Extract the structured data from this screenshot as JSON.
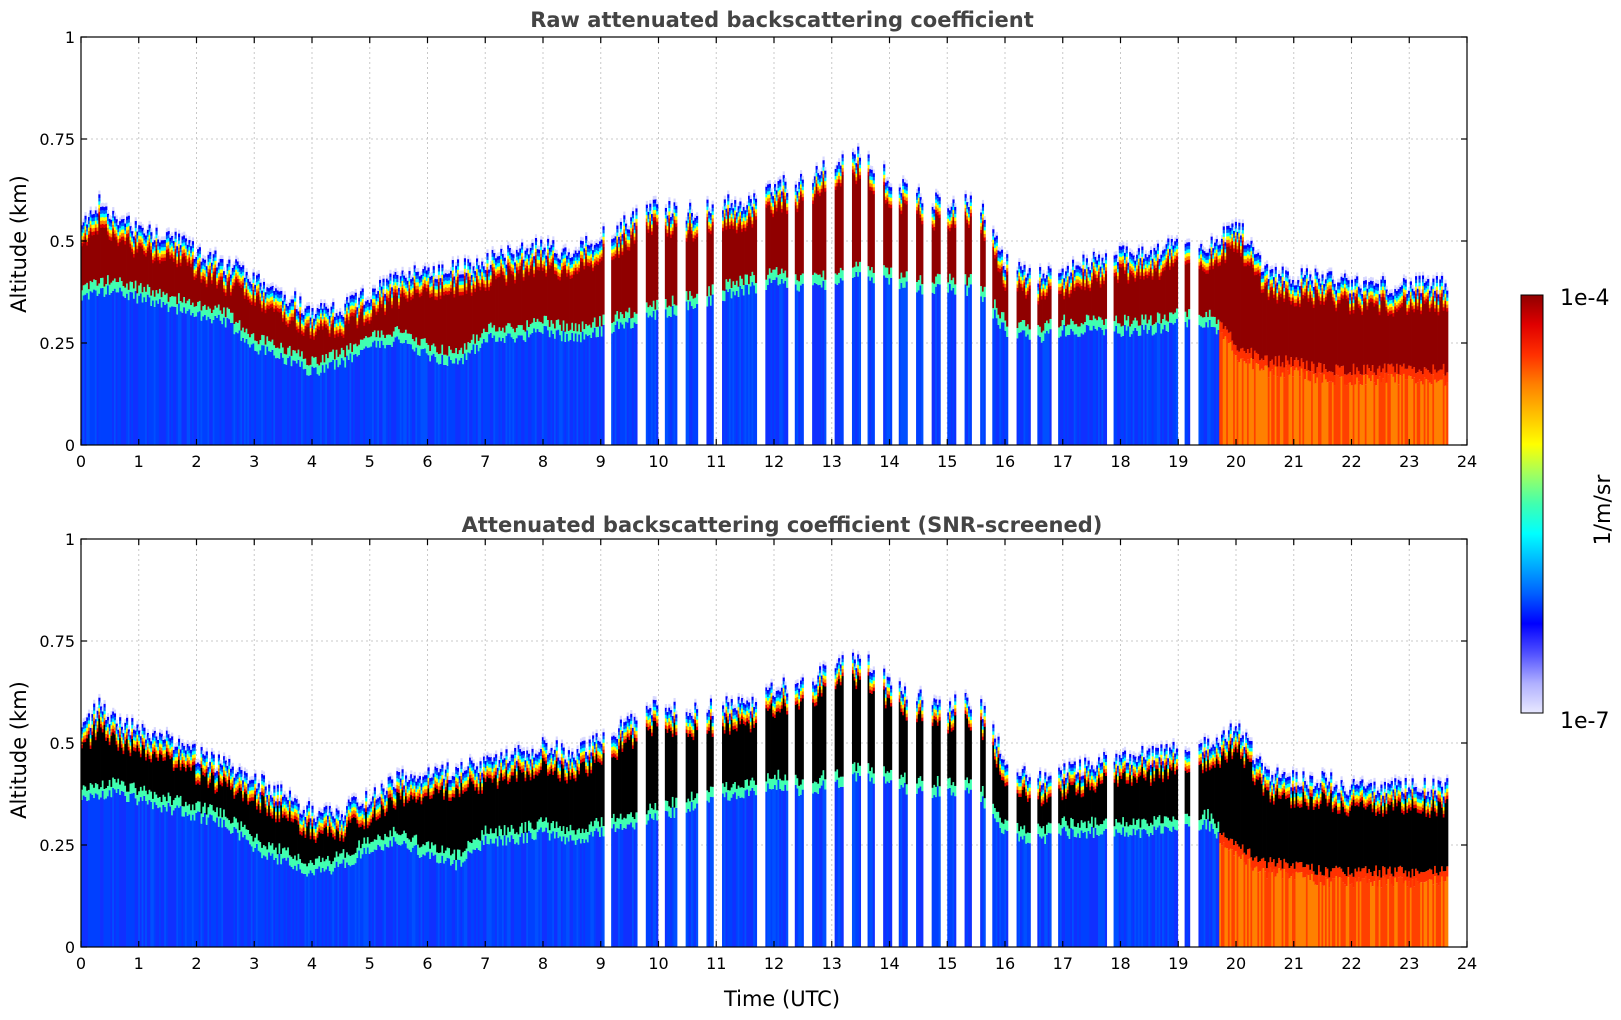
{
  "chart_data": [
    {
      "type": "heatmap",
      "title": "Raw attenuated backscattering coefficient",
      "xlabel": "",
      "ylabel": "Altitude (km)",
      "xlim": [
        0,
        24
      ],
      "ylim": [
        0,
        1
      ],
      "xticks": [
        "0",
        "1",
        "2",
        "3",
        "4",
        "5",
        "6",
        "7",
        "8",
        "9",
        "10",
        "11",
        "12",
        "13",
        "14",
        "15",
        "16",
        "17",
        "18",
        "19",
        "20",
        "21",
        "22",
        "23",
        "24"
      ],
      "yticks": [
        "0",
        "0.25",
        "0.5",
        "0.75",
        "1"
      ],
      "grid": true,
      "screened": false,
      "layer_top_km": [
        [
          0,
          0.54
        ],
        [
          0.3,
          0.6
        ],
        [
          0.6,
          0.56
        ],
        [
          1.0,
          0.54
        ],
        [
          1.5,
          0.52
        ],
        [
          2.0,
          0.48
        ],
        [
          2.5,
          0.45
        ],
        [
          3.0,
          0.42
        ],
        [
          3.5,
          0.38
        ],
        [
          4.0,
          0.34
        ],
        [
          4.5,
          0.34
        ],
        [
          5.0,
          0.38
        ],
        [
          5.5,
          0.42
        ],
        [
          6.0,
          0.44
        ],
        [
          6.5,
          0.44
        ],
        [
          7.0,
          0.46
        ],
        [
          7.5,
          0.48
        ],
        [
          8.0,
          0.5
        ],
        [
          8.5,
          0.48
        ],
        [
          9.0,
          0.52
        ],
        [
          9.5,
          0.56
        ],
        [
          10.0,
          0.6
        ],
        [
          10.5,
          0.58
        ],
        [
          11.0,
          0.6
        ],
        [
          11.5,
          0.6
        ],
        [
          12.0,
          0.64
        ],
        [
          12.5,
          0.66
        ],
        [
          13.0,
          0.7
        ],
        [
          13.5,
          0.72
        ],
        [
          14.0,
          0.66
        ],
        [
          14.5,
          0.62
        ],
        [
          15.0,
          0.6
        ],
        [
          15.5,
          0.62
        ],
        [
          16.0,
          0.46
        ],
        [
          16.5,
          0.42
        ],
        [
          17.0,
          0.44
        ],
        [
          17.5,
          0.46
        ],
        [
          18.0,
          0.48
        ],
        [
          18.5,
          0.48
        ],
        [
          19.0,
          0.5
        ],
        [
          19.5,
          0.5
        ],
        [
          20.0,
          0.55
        ],
        [
          20.5,
          0.44
        ],
        [
          21.0,
          0.42
        ],
        [
          21.5,
          0.42
        ],
        [
          22.0,
          0.4
        ],
        [
          22.5,
          0.4
        ],
        [
          23.0,
          0.4
        ],
        [
          23.65,
          0.4
        ]
      ],
      "layer_base_km": [
        [
          0,
          0.36
        ],
        [
          0.5,
          0.38
        ],
        [
          1.0,
          0.36
        ],
        [
          1.5,
          0.34
        ],
        [
          2.0,
          0.32
        ],
        [
          2.5,
          0.3
        ],
        [
          3.0,
          0.24
        ],
        [
          3.5,
          0.21
        ],
        [
          4.0,
          0.18
        ],
        [
          4.5,
          0.2
        ],
        [
          5.0,
          0.24
        ],
        [
          5.5,
          0.26
        ],
        [
          6.0,
          0.22
        ],
        [
          6.5,
          0.2
        ],
        [
          7.0,
          0.26
        ],
        [
          7.5,
          0.26
        ],
        [
          8.0,
          0.28
        ],
        [
          8.5,
          0.26
        ],
        [
          9.0,
          0.28
        ],
        [
          9.5,
          0.3
        ],
        [
          10.0,
          0.32
        ],
        [
          10.5,
          0.34
        ],
        [
          11.0,
          0.36
        ],
        [
          11.5,
          0.38
        ],
        [
          12.0,
          0.4
        ],
        [
          12.5,
          0.38
        ],
        [
          13.0,
          0.4
        ],
        [
          13.5,
          0.42
        ],
        [
          14.0,
          0.4
        ],
        [
          14.5,
          0.38
        ],
        [
          15.0,
          0.38
        ],
        [
          15.5,
          0.38
        ],
        [
          16.0,
          0.28
        ],
        [
          16.5,
          0.26
        ],
        [
          17.0,
          0.28
        ],
        [
          17.5,
          0.28
        ],
        [
          18.0,
          0.28
        ],
        [
          18.5,
          0.28
        ],
        [
          19.0,
          0.3
        ],
        [
          19.5,
          0.3
        ],
        [
          20.0,
          0.22
        ],
        [
          20.5,
          0.18
        ],
        [
          21.0,
          0.18
        ],
        [
          21.5,
          0.16
        ],
        [
          22.0,
          0.16
        ],
        [
          22.5,
          0.16
        ],
        [
          23.0,
          0.16
        ],
        [
          23.65,
          0.16
        ]
      ],
      "data_gaps_utc": [
        9.12,
        9.7,
        10.05,
        10.4,
        10.75,
        11.02,
        11.78,
        12.3,
        12.58,
        12.98,
        13.28,
        13.56,
        13.82,
        14.1,
        14.38,
        14.66,
        14.94,
        15.22,
        15.5,
        15.72,
        16.12,
        16.5,
        16.86,
        17.82,
        19.05,
        19.28
      ],
      "end_utc": 23.65
    },
    {
      "type": "heatmap",
      "title": "Attenuated backscattering coefficient (SNR-screened)",
      "xlabel": "Time (UTC)",
      "ylabel": "Altitude (km)",
      "xlim": [
        0,
        24
      ],
      "ylim": [
        0,
        1
      ],
      "xticks": [
        "0",
        "1",
        "2",
        "3",
        "4",
        "5",
        "6",
        "7",
        "8",
        "9",
        "10",
        "11",
        "12",
        "13",
        "14",
        "15",
        "16",
        "17",
        "18",
        "19",
        "20",
        "21",
        "22",
        "23",
        "24"
      ],
      "yticks": [
        "0",
        "0.25",
        "0.5",
        "0.75",
        "1"
      ],
      "grid": true,
      "screened": true,
      "screened_color": "#000000"
    }
  ],
  "colorbar": {
    "max_label": "1e-4",
    "min_label": "1e-7",
    "unit_label": "1/m/sr",
    "colormap": [
      "#e8e8ff",
      "#b0b0ff",
      "#5050ff",
      "#0000ff",
      "#0060ff",
      "#00b0ff",
      "#00ffff",
      "#40ffb0",
      "#a0ff60",
      "#ffff00",
      "#ffc000",
      "#ff8000",
      "#ff3000",
      "#e00000",
      "#900000"
    ],
    "scale": "log"
  }
}
